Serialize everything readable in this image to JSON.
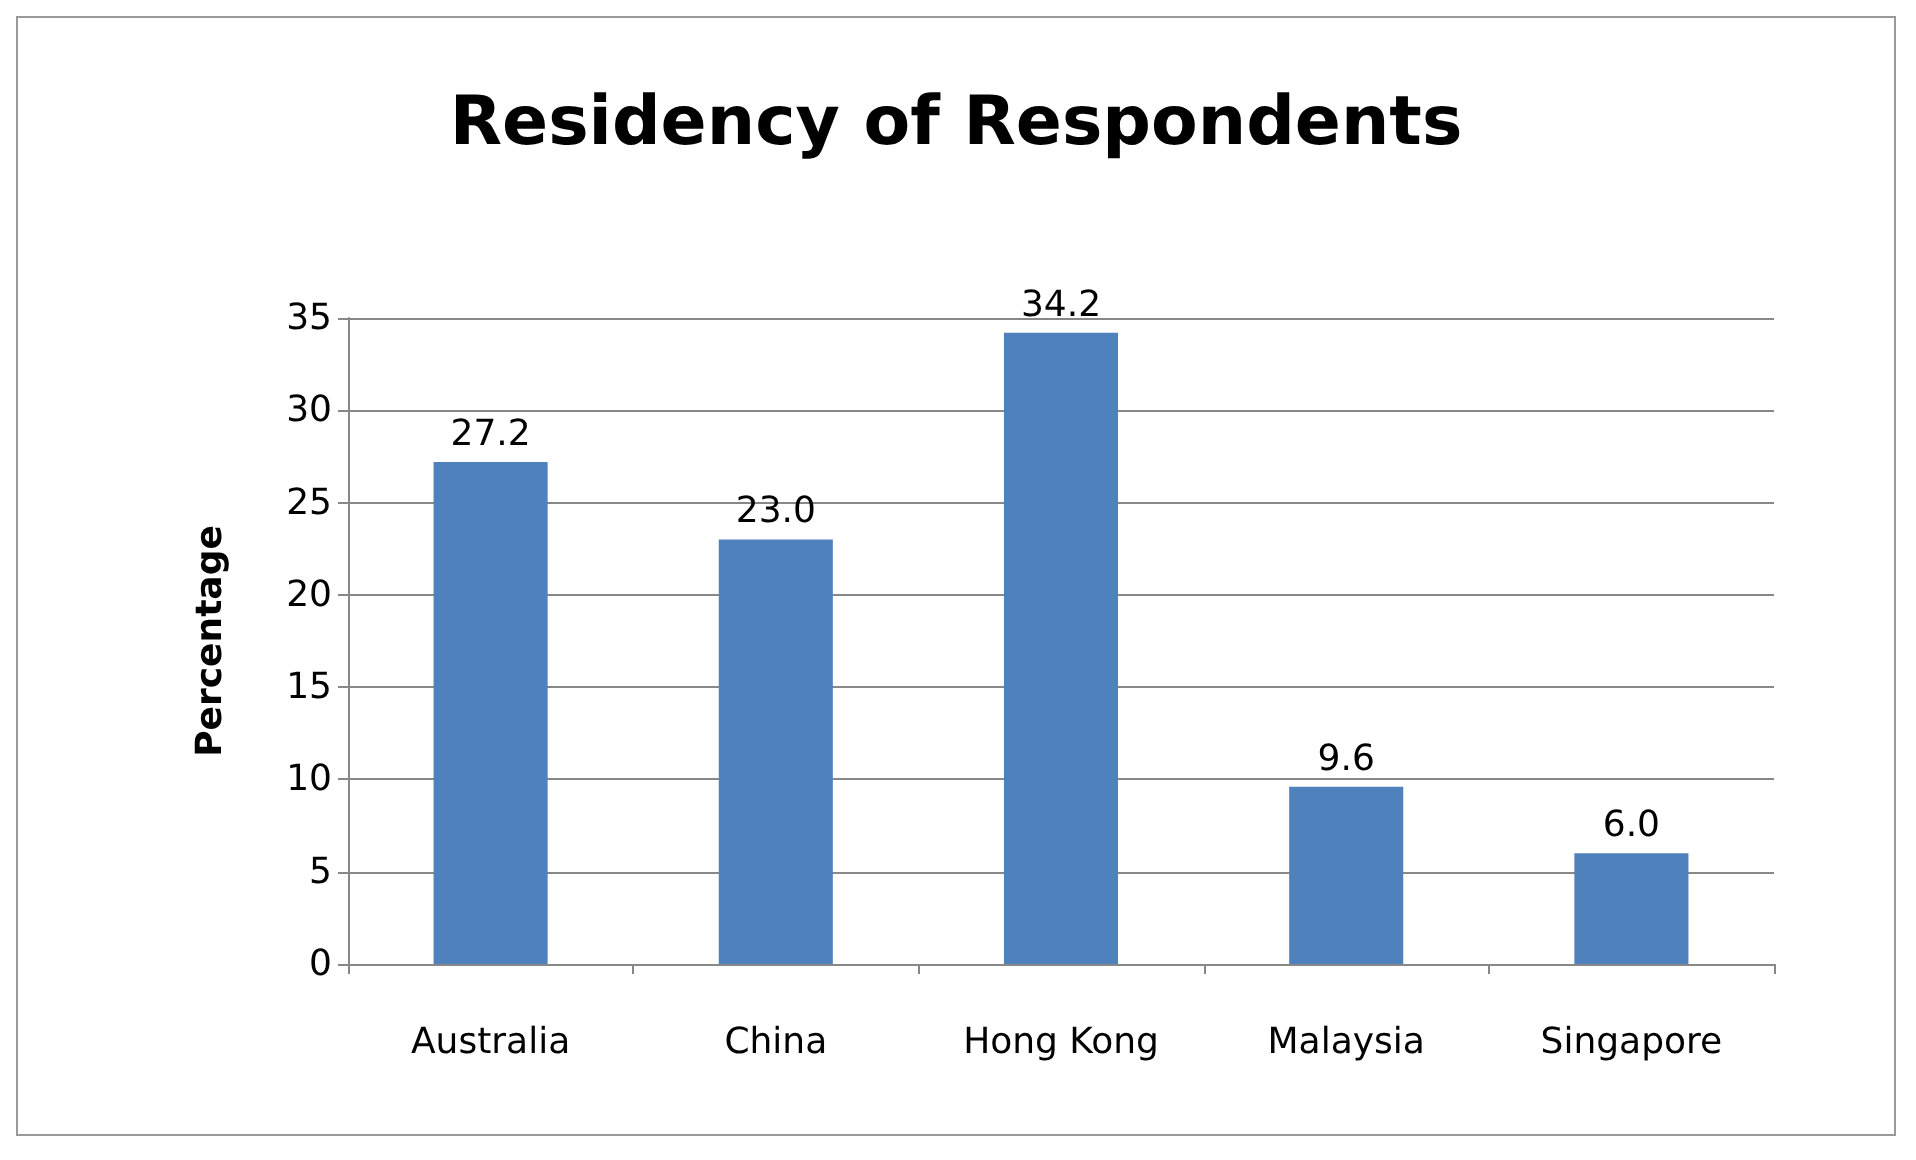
{
  "chart_data": {
    "type": "bar",
    "title": "Residency of Respondents",
    "ylabel": "Percentage",
    "categories": [
      "Australia",
      "China",
      "Hong Kong",
      "Malaysia",
      "Singapore"
    ],
    "values": [
      27.2,
      23.0,
      34.2,
      9.6,
      6.0
    ],
    "value_labels": [
      "27.2",
      "23.0",
      "34.2",
      "9.6",
      "6.0"
    ],
    "color": "#4f81bd",
    "ylim": [
      0,
      35
    ],
    "yticks": [
      0,
      5,
      10,
      15,
      20,
      25,
      30,
      35
    ],
    "grid": "y"
  }
}
